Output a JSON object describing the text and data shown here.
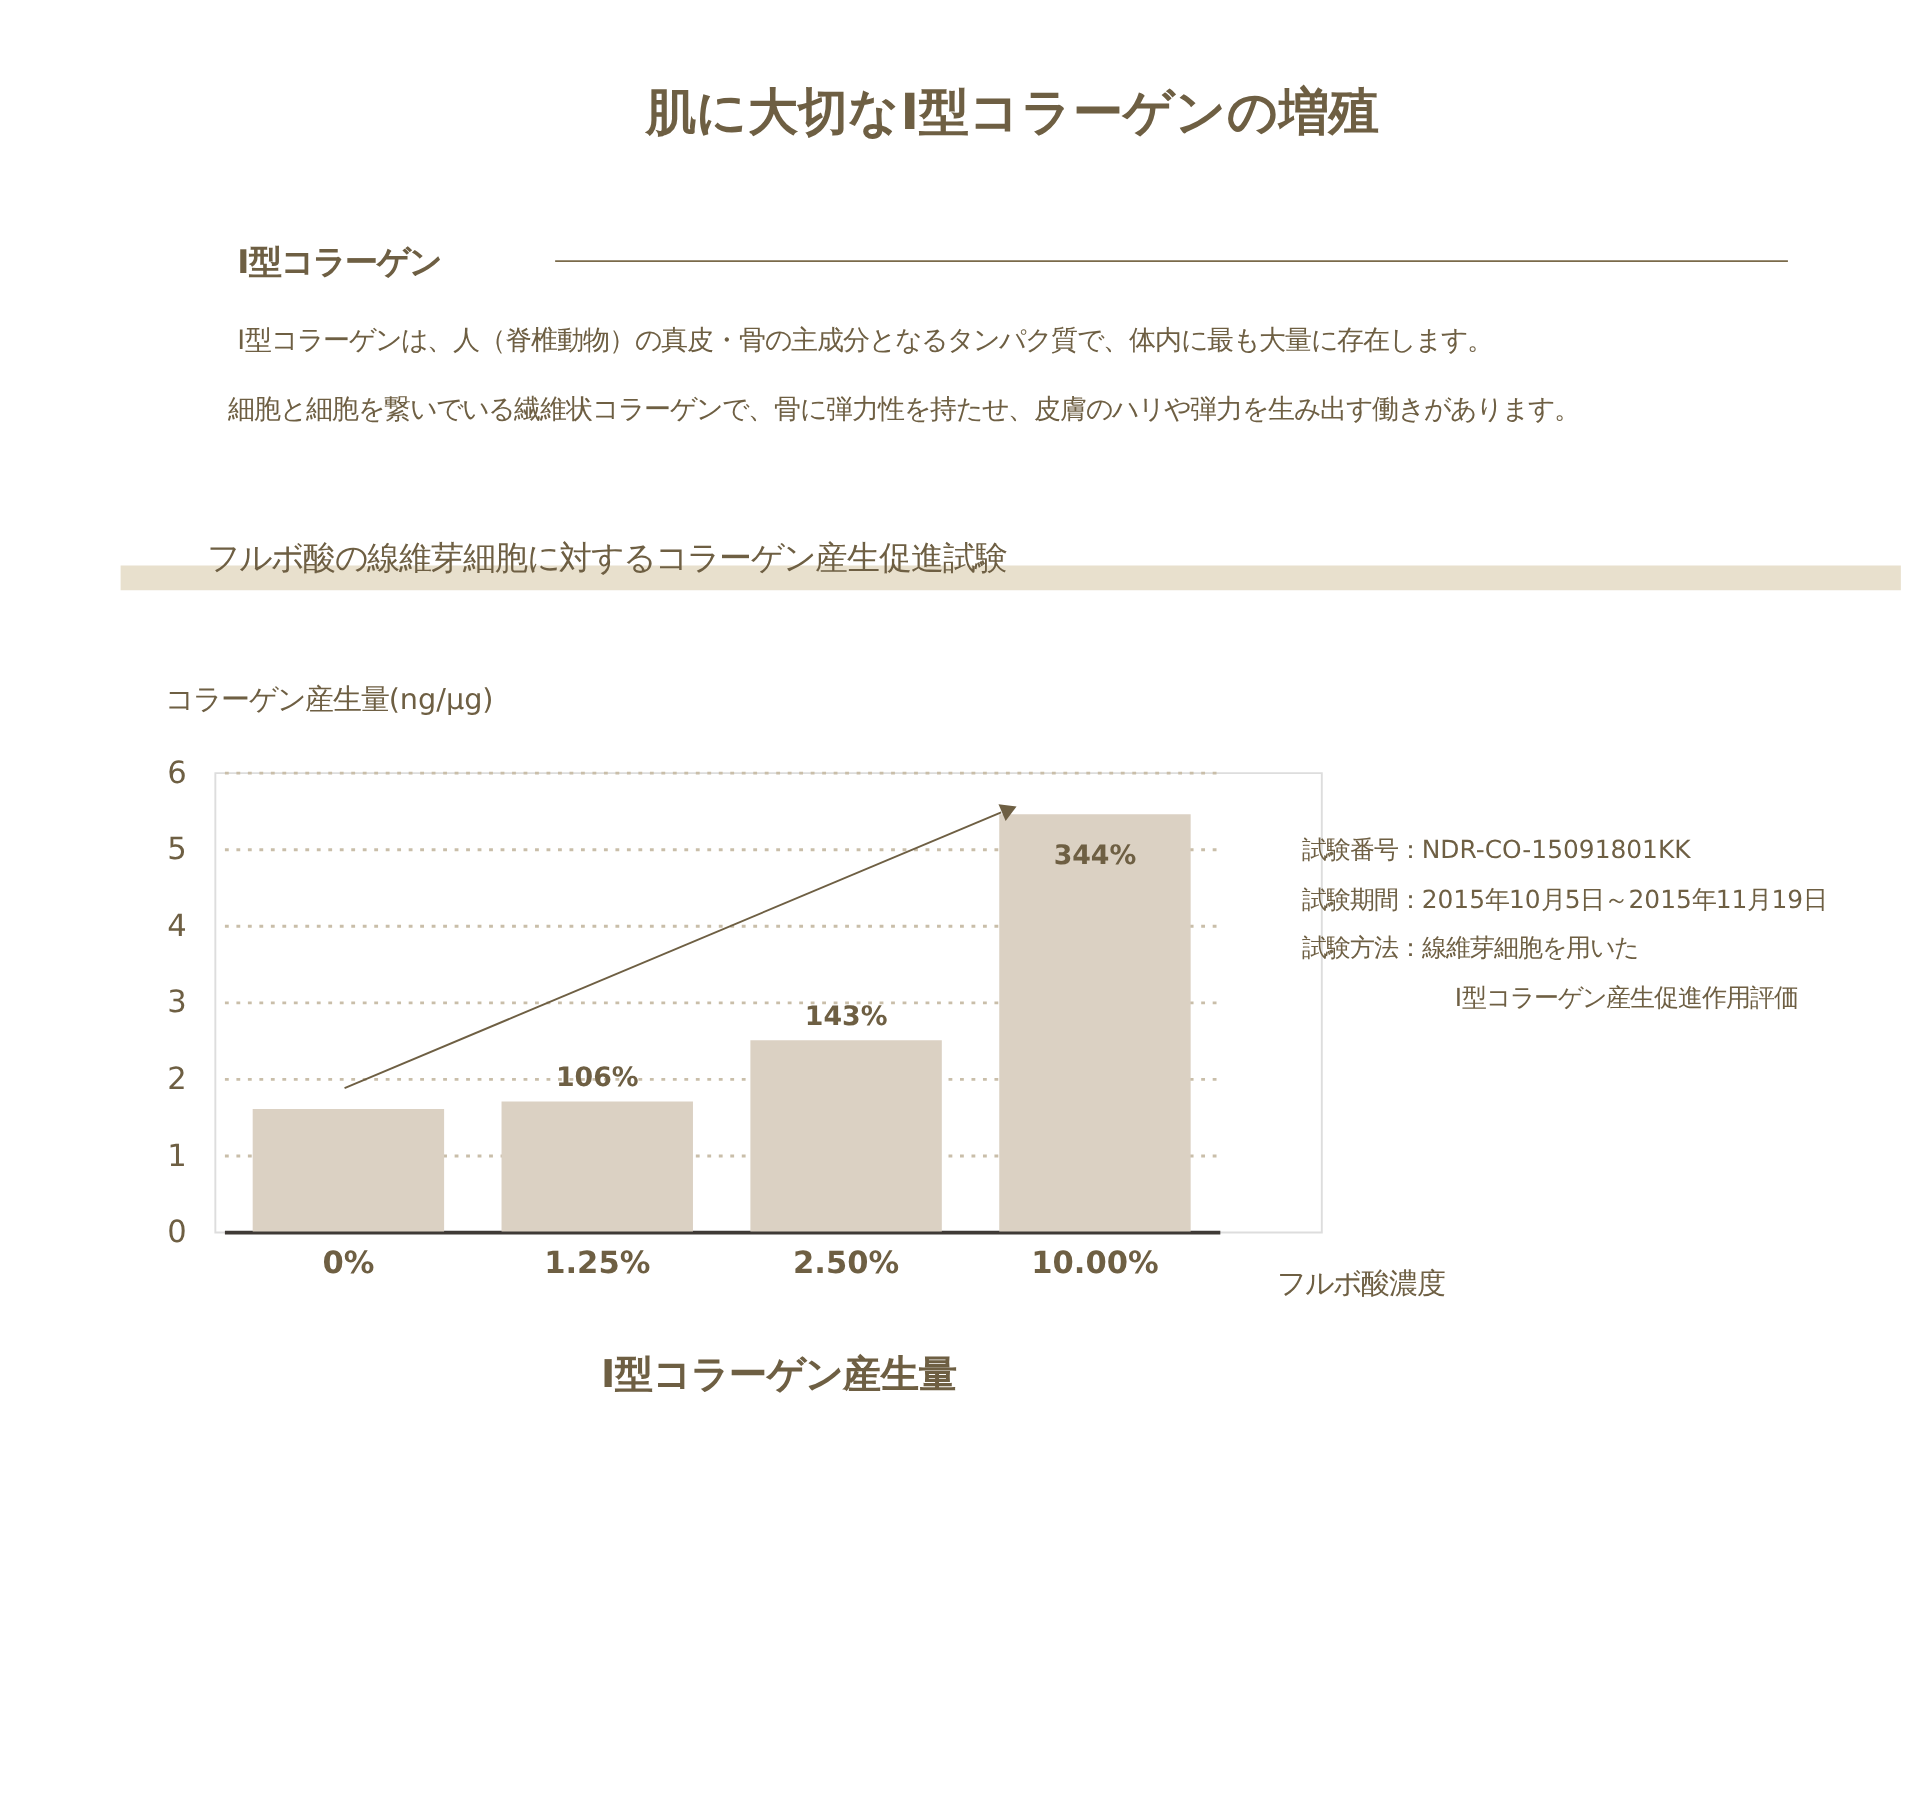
{
  "chart_data": {
    "type": "bar",
    "title": "肌に大切なI型コラーゲンの増殖",
    "xlabel": "フルボ酸濃度",
    "ylabel": "コラーゲン産生量(ng/μg)",
    "categories": [
      "0%",
      "1.25%",
      "2.50%",
      "10.00%"
    ],
    "values": [
      1.6,
      1.7,
      2.5,
      5.45
    ],
    "color": "#dbd1c3",
    "ylim": [
      0,
      6
    ],
    "yticks": [
      0,
      1,
      2,
      3,
      4,
      5,
      6
    ],
    "grid": "y",
    "annotations": [
      "I型コラーゲン",
      "I型コラーゲンは、人（脊椎動物）の真皮・骨の主成分となるタンパク質で、体内に最も大量に存在します。",
      "細胞と細胞を繋いでいる繊維状コラーゲンで、骨に弾力性を持たせ、皮膚のハリや弾力を生み出す働きがあります。",
      "フルボ酸の線維芽細胞に対するコラーゲン産生促進試験",
      "I型コラーゲン産生量",
      "試験番号：NDR-CO-15091801KK",
      "試験期間：2015年10月5日～2015年11月19日",
      "試験方法：線維芽細胞を用いた",
      "I型コラーゲン産生促進作用評価",
      {
        "text": "106%",
        "x": "1.25%",
        "y": 1.7
      },
      {
        "text": "143%",
        "x": "2.50%",
        "y": 2.5
      },
      {
        "text": "344%",
        "x": "10.00%",
        "y": 5.45
      }
    ]
  }
}
